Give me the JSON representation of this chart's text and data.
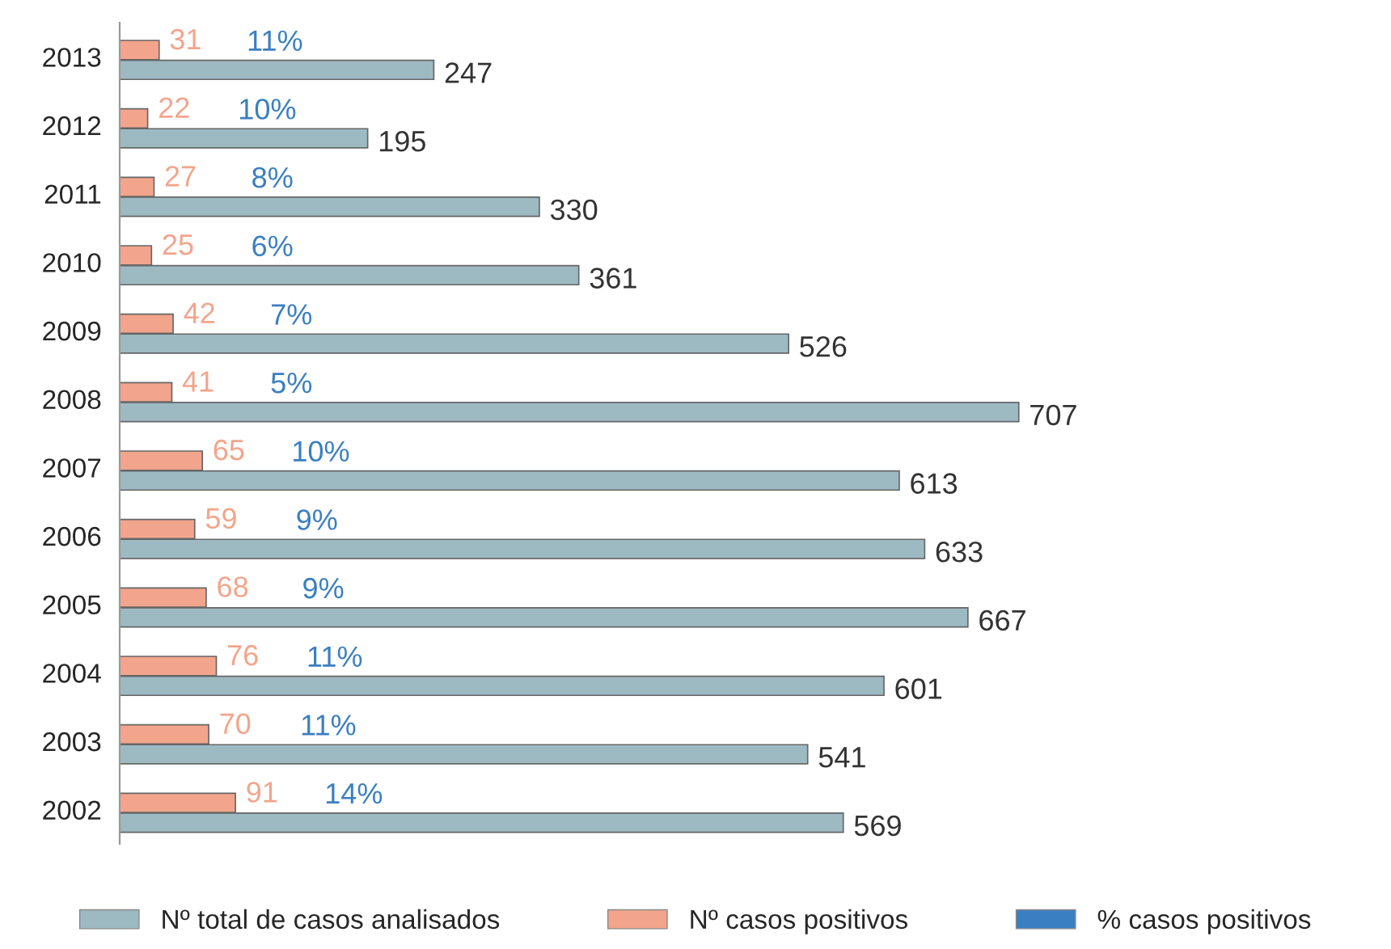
{
  "chart_data": {
    "type": "bar",
    "orientation": "horizontal",
    "categories": [
      "2013",
      "2012",
      "2011",
      "2010",
      "2009",
      "2008",
      "2007",
      "2006",
      "2005",
      "2004",
      "2003",
      "2002"
    ],
    "series": [
      {
        "name": "Nº total de casos analisados",
        "color": "#9dbac3",
        "values": [
          247,
          195,
          330,
          361,
          526,
          707,
          613,
          633,
          667,
          601,
          541,
          569
        ]
      },
      {
        "name": "Nº casos positivos",
        "color": "#f2a58c",
        "values": [
          31,
          22,
          27,
          25,
          42,
          41,
          65,
          59,
          68,
          76,
          70,
          91
        ]
      },
      {
        "name": "% casos positivos",
        "color": "#3a7fc1",
        "values": [
          null,
          null,
          null,
          null,
          null,
          null,
          null,
          null,
          null,
          null,
          null,
          null
        ]
      }
    ],
    "annotations": [
      {
        "text": "11%",
        "x": 122,
        "y": "2013"
      },
      {
        "text": "10%",
        "x": 116,
        "y": "2012"
      },
      {
        "text": "8%",
        "x": 120,
        "y": "2011"
      },
      {
        "text": "6%",
        "x": 120,
        "y": "2010"
      },
      {
        "text": "7%",
        "x": 135,
        "y": "2009"
      },
      {
        "text": "5%",
        "x": 135,
        "y": "2008"
      },
      {
        "text": "10%",
        "x": 158,
        "y": "2007"
      },
      {
        "text": "9%",
        "x": 155,
        "y": "2006"
      },
      {
        "text": "9%",
        "x": 160,
        "y": "2005"
      },
      {
        "text": "11%",
        "x": 169,
        "y": "2004"
      },
      {
        "text": "11%",
        "x": 164,
        "y": "2003"
      },
      {
        "text": "14%",
        "x": 184,
        "y": "2002"
      }
    ],
    "data_labels": true,
    "tick_labels": "y",
    "grid": false,
    "legend": "bottom"
  }
}
